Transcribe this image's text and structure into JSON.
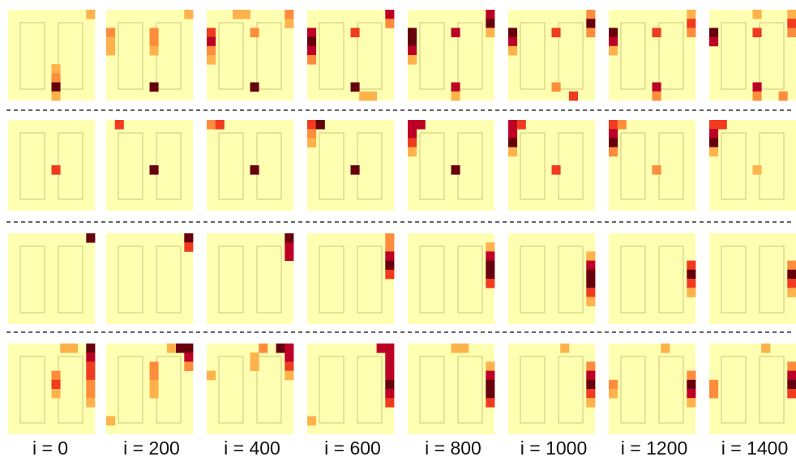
{
  "captions": [
    "i = 0",
    "i = 200",
    "i = 400",
    "i = 600",
    "i = 800",
    "i = 1000",
    "i = 1200",
    "i = 1400"
  ],
  "colors": {
    "background": "#ffffb2",
    "outline": "#c9c77a",
    "separator": "#333333",
    "heat_scale": [
      "#ffeda0",
      "#feb24c",
      "#fd8d3c",
      "#f03b20",
      "#bd0026",
      "#67000d"
    ]
  },
  "rows": [
    [
      {
        "cells": [
          [
            9,
            0,
            1
          ],
          [
            5,
            6,
            1
          ],
          [
            5,
            7,
            2
          ],
          [
            5,
            8,
            5
          ],
          [
            5,
            9,
            1
          ]
        ]
      },
      {
        "cells": [
          [
            0,
            2,
            2
          ],
          [
            0,
            3,
            1
          ],
          [
            0,
            4,
            1
          ],
          [
            5,
            2,
            2
          ],
          [
            5,
            3,
            2
          ],
          [
            5,
            4,
            1
          ],
          [
            5,
            8,
            5
          ],
          [
            9,
            0,
            1
          ]
        ]
      },
      {
        "cells": [
          [
            0,
            2,
            3
          ],
          [
            0,
            3,
            4
          ],
          [
            0,
            4,
            2
          ],
          [
            0,
            5,
            1
          ],
          [
            3,
            0,
            1
          ],
          [
            4,
            0,
            1
          ],
          [
            5,
            2,
            2
          ],
          [
            5,
            8,
            5
          ],
          [
            9,
            0,
            2
          ],
          [
            9,
            1,
            1
          ]
        ]
      },
      {
        "cells": [
          [
            0,
            2,
            4
          ],
          [
            0,
            3,
            5
          ],
          [
            0,
            4,
            4
          ],
          [
            0,
            5,
            2
          ],
          [
            5,
            2,
            3
          ],
          [
            5,
            8,
            5
          ],
          [
            6,
            9,
            1
          ],
          [
            7,
            9,
            1
          ],
          [
            9,
            0,
            4
          ],
          [
            9,
            1,
            2
          ]
        ]
      },
      {
        "cells": [
          [
            0,
            2,
            5
          ],
          [
            0,
            3,
            5
          ],
          [
            0,
            4,
            4
          ],
          [
            0,
            5,
            1
          ],
          [
            5,
            2,
            4
          ],
          [
            5,
            8,
            4
          ],
          [
            5,
            9,
            1
          ],
          [
            9,
            0,
            4
          ],
          [
            9,
            1,
            5
          ],
          [
            9,
            2,
            1
          ]
        ]
      },
      {
        "cells": [
          [
            0,
            2,
            5
          ],
          [
            0,
            3,
            4
          ],
          [
            0,
            4,
            1
          ],
          [
            5,
            2,
            3
          ],
          [
            5,
            8,
            2
          ],
          [
            7,
            9,
            3
          ],
          [
            9,
            0,
            2
          ],
          [
            9,
            1,
            5
          ],
          [
            9,
            2,
            2
          ]
        ]
      },
      {
        "cells": [
          [
            0,
            2,
            5
          ],
          [
            0,
            3,
            4
          ],
          [
            0,
            4,
            1
          ],
          [
            5,
            2,
            3
          ],
          [
            5,
            8,
            4
          ],
          [
            5,
            9,
            2
          ],
          [
            9,
            0,
            1
          ],
          [
            9,
            1,
            3
          ],
          [
            9,
            2,
            2
          ]
        ]
      },
      {
        "cells": [
          [
            0,
            2,
            5
          ],
          [
            0,
            3,
            4
          ],
          [
            5,
            0,
            1
          ],
          [
            5,
            2,
            3
          ],
          [
            5,
            8,
            4
          ],
          [
            5,
            9,
            2
          ],
          [
            8,
            9,
            2
          ],
          [
            9,
            0,
            1
          ],
          [
            9,
            1,
            3
          ],
          [
            9,
            2,
            2
          ]
        ]
      }
    ],
    [
      {
        "cells": [
          [
            5,
            5,
            3
          ]
        ]
      },
      {
        "cells": [
          [
            1,
            0,
            3
          ],
          [
            5,
            5,
            5
          ]
        ]
      },
      {
        "cells": [
          [
            0,
            0,
            2
          ],
          [
            1,
            0,
            3
          ],
          [
            5,
            5,
            5
          ]
        ]
      },
      {
        "cells": [
          [
            0,
            0,
            3
          ],
          [
            1,
            0,
            5
          ],
          [
            0,
            1,
            2
          ],
          [
            0,
            2,
            1
          ],
          [
            5,
            5,
            5
          ]
        ]
      },
      {
        "cells": [
          [
            0,
            0,
            4
          ],
          [
            1,
            0,
            4
          ],
          [
            0,
            1,
            4
          ],
          [
            0,
            2,
            3
          ],
          [
            0,
            3,
            1
          ],
          [
            5,
            5,
            5
          ]
        ]
      },
      {
        "cells": [
          [
            0,
            0,
            4
          ],
          [
            1,
            0,
            3
          ],
          [
            0,
            1,
            4
          ],
          [
            0,
            2,
            5
          ],
          [
            0,
            3,
            1
          ],
          [
            5,
            5,
            3
          ]
        ]
      },
      {
        "cells": [
          [
            0,
            0,
            3
          ],
          [
            1,
            0,
            2
          ],
          [
            0,
            1,
            4
          ],
          [
            0,
            2,
            5
          ],
          [
            0,
            3,
            2
          ],
          [
            5,
            5,
            2
          ]
        ]
      },
      {
        "cells": [
          [
            0,
            0,
            3
          ],
          [
            1,
            0,
            3
          ],
          [
            0,
            1,
            4
          ],
          [
            0,
            2,
            5
          ],
          [
            0,
            3,
            1
          ],
          [
            5,
            5,
            1
          ]
        ]
      }
    ],
    [
      {
        "cells": [
          [
            9,
            0,
            5
          ]
        ]
      },
      {
        "cells": [
          [
            9,
            0,
            5
          ],
          [
            9,
            1,
            3
          ]
        ]
      },
      {
        "cells": [
          [
            9,
            0,
            5
          ],
          [
            9,
            1,
            4
          ],
          [
            9,
            2,
            4
          ]
        ]
      },
      {
        "cells": [
          [
            9,
            0,
            2
          ],
          [
            9,
            1,
            2
          ],
          [
            9,
            2,
            4
          ],
          [
            9,
            3,
            5
          ],
          [
            9,
            4,
            3
          ]
        ]
      },
      {
        "cells": [
          [
            9,
            1,
            1
          ],
          [
            9,
            2,
            4
          ],
          [
            9,
            3,
            5
          ],
          [
            9,
            4,
            5
          ],
          [
            9,
            5,
            3
          ]
        ]
      },
      {
        "cells": [
          [
            9,
            2,
            1
          ],
          [
            9,
            3,
            4
          ],
          [
            9,
            4,
            5
          ],
          [
            9,
            5,
            5
          ],
          [
            9,
            6,
            3
          ],
          [
            9,
            7,
            1
          ]
        ]
      },
      {
        "cells": [
          [
            9,
            3,
            3
          ],
          [
            9,
            4,
            5
          ],
          [
            9,
            5,
            3
          ],
          [
            9,
            6,
            1
          ]
        ]
      },
      {
        "cells": [
          [
            9,
            3,
            2
          ],
          [
            9,
            4,
            5
          ],
          [
            9,
            5,
            3
          ],
          [
            9,
            6,
            1
          ]
        ]
      }
    ],
    [
      {
        "cells": [
          [
            9,
            0,
            5
          ],
          [
            9,
            1,
            4
          ],
          [
            9,
            2,
            3
          ],
          [
            9,
            3,
            3
          ],
          [
            9,
            4,
            2
          ],
          [
            9,
            5,
            2
          ],
          [
            9,
            6,
            1
          ],
          [
            5,
            3,
            2
          ],
          [
            5,
            4,
            3
          ],
          [
            5,
            5,
            1
          ],
          [
            6,
            0,
            1
          ],
          [
            7,
            0,
            1
          ]
        ]
      },
      {
        "cells": [
          [
            8,
            0,
            5
          ],
          [
            9,
            0,
            5
          ],
          [
            9,
            1,
            4
          ],
          [
            9,
            2,
            2
          ],
          [
            7,
            0,
            1
          ],
          [
            5,
            2,
            2
          ],
          [
            5,
            3,
            2
          ],
          [
            5,
            4,
            1
          ],
          [
            5,
            5,
            1
          ],
          [
            0,
            8,
            1
          ]
        ]
      },
      {
        "cells": [
          [
            8,
            0,
            5
          ],
          [
            9,
            0,
            4
          ],
          [
            9,
            1,
            4
          ],
          [
            9,
            2,
            3
          ],
          [
            9,
            3,
            1
          ],
          [
            6,
            0,
            2
          ],
          [
            5,
            1,
            1
          ],
          [
            5,
            2,
            1
          ],
          [
            0,
            3,
            1
          ]
        ]
      },
      {
        "cells": [
          [
            8,
            0,
            4
          ],
          [
            9,
            0,
            4
          ],
          [
            9,
            1,
            4
          ],
          [
            9,
            2,
            4
          ],
          [
            9,
            3,
            4
          ],
          [
            9,
            4,
            5
          ],
          [
            9,
            5,
            4
          ],
          [
            9,
            6,
            3
          ],
          [
            0,
            8,
            1
          ]
        ]
      },
      {
        "cells": [
          [
            9,
            2,
            1
          ],
          [
            9,
            3,
            4
          ],
          [
            9,
            4,
            5
          ],
          [
            9,
            5,
            5
          ],
          [
            9,
            6,
            3
          ],
          [
            6,
            0,
            1
          ],
          [
            5,
            0,
            1
          ]
        ]
      },
      {
        "cells": [
          [
            9,
            2,
            2
          ],
          [
            9,
            3,
            4
          ],
          [
            9,
            4,
            5
          ],
          [
            9,
            5,
            3
          ],
          [
            9,
            6,
            1
          ],
          [
            6,
            0,
            1
          ]
        ]
      },
      {
        "cells": [
          [
            9,
            3,
            2
          ],
          [
            9,
            4,
            5
          ],
          [
            9,
            5,
            4
          ],
          [
            9,
            6,
            1
          ],
          [
            0,
            4,
            2
          ],
          [
            0,
            5,
            1
          ],
          [
            6,
            0,
            1
          ]
        ]
      },
      {
        "cells": [
          [
            9,
            2,
            2
          ],
          [
            9,
            3,
            4
          ],
          [
            9,
            4,
            5
          ],
          [
            9,
            5,
            3
          ],
          [
            0,
            4,
            2
          ],
          [
            0,
            5,
            2
          ],
          [
            6,
            0,
            1
          ]
        ]
      }
    ]
  ]
}
